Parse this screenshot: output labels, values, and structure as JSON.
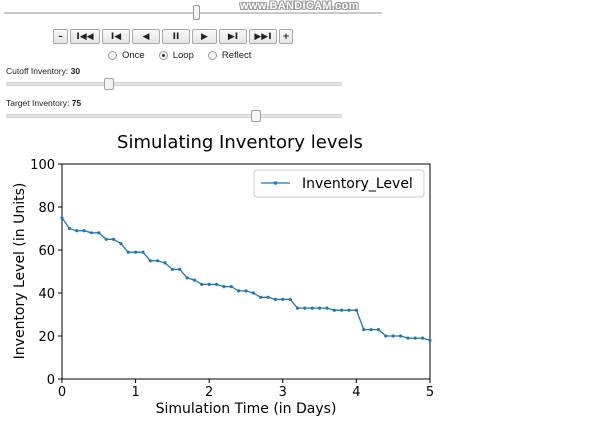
{
  "watermark": "www.BANDICAM.com",
  "controls": {
    "minus": "–",
    "first": "I◀◀",
    "prev_frame": "I◀",
    "reverse": "◀",
    "pause": "II",
    "play": "▶",
    "next_frame": "▶I",
    "last": "▶▶I",
    "plus": "+"
  },
  "animation_progress": 0.51,
  "loop_modes": [
    {
      "label": "Once",
      "checked": false
    },
    {
      "label": "Loop",
      "checked": true
    },
    {
      "label": "Reflect",
      "checked": false
    }
  ],
  "params": {
    "cutoff": {
      "label": "Cutoff Inventory:",
      "value": "30",
      "min": 0,
      "max": 100,
      "level": 30
    },
    "target": {
      "label": "Target Inventory:",
      "value": "75",
      "min": 0,
      "max": 100,
      "level": 75
    }
  },
  "chart_data": {
    "type": "line",
    "title": "Simulating Inventory levels",
    "xlabel": "Simulation Time (in Days)",
    "ylabel": "Inventory Level (in Units)",
    "xlim": [
      0,
      5
    ],
    "ylim": [
      0,
      100
    ],
    "xticks": [
      "0",
      "1",
      "2",
      "3",
      "4",
      "5"
    ],
    "yticks": [
      "0",
      "20",
      "40",
      "60",
      "80",
      "100"
    ],
    "legend_position": "top-right",
    "color": "#1f77b4",
    "series": [
      {
        "name": "Inventory_Level",
        "x": [
          0,
          0.1,
          0.2,
          0.3,
          0.4,
          0.5,
          0.6,
          0.7,
          0.8,
          0.9,
          1.0,
          1.1,
          1.2,
          1.3,
          1.4,
          1.5,
          1.6,
          1.7,
          1.8,
          1.9,
          2.0,
          2.1,
          2.2,
          2.3,
          2.4,
          2.5,
          2.6,
          2.7,
          2.8,
          2.9,
          3.0,
          3.1,
          3.2,
          3.3,
          3.4,
          3.5,
          3.6,
          3.7,
          3.8,
          3.9,
          4.0,
          4.1,
          4.2,
          4.3,
          4.4,
          4.5,
          4.6,
          4.7,
          4.8,
          4.9,
          5.0
        ],
        "y": [
          75,
          70,
          69,
          69,
          68,
          68,
          65,
          65,
          63,
          59,
          59,
          59,
          55,
          55,
          54,
          51,
          51,
          47,
          46,
          44,
          44,
          44,
          43,
          43,
          41,
          41,
          40,
          38,
          38,
          37,
          37,
          37,
          33,
          33,
          33,
          33,
          33,
          32,
          32,
          32,
          32,
          23,
          23,
          23,
          20,
          20,
          20,
          19,
          19,
          19,
          18
        ]
      }
    ]
  }
}
